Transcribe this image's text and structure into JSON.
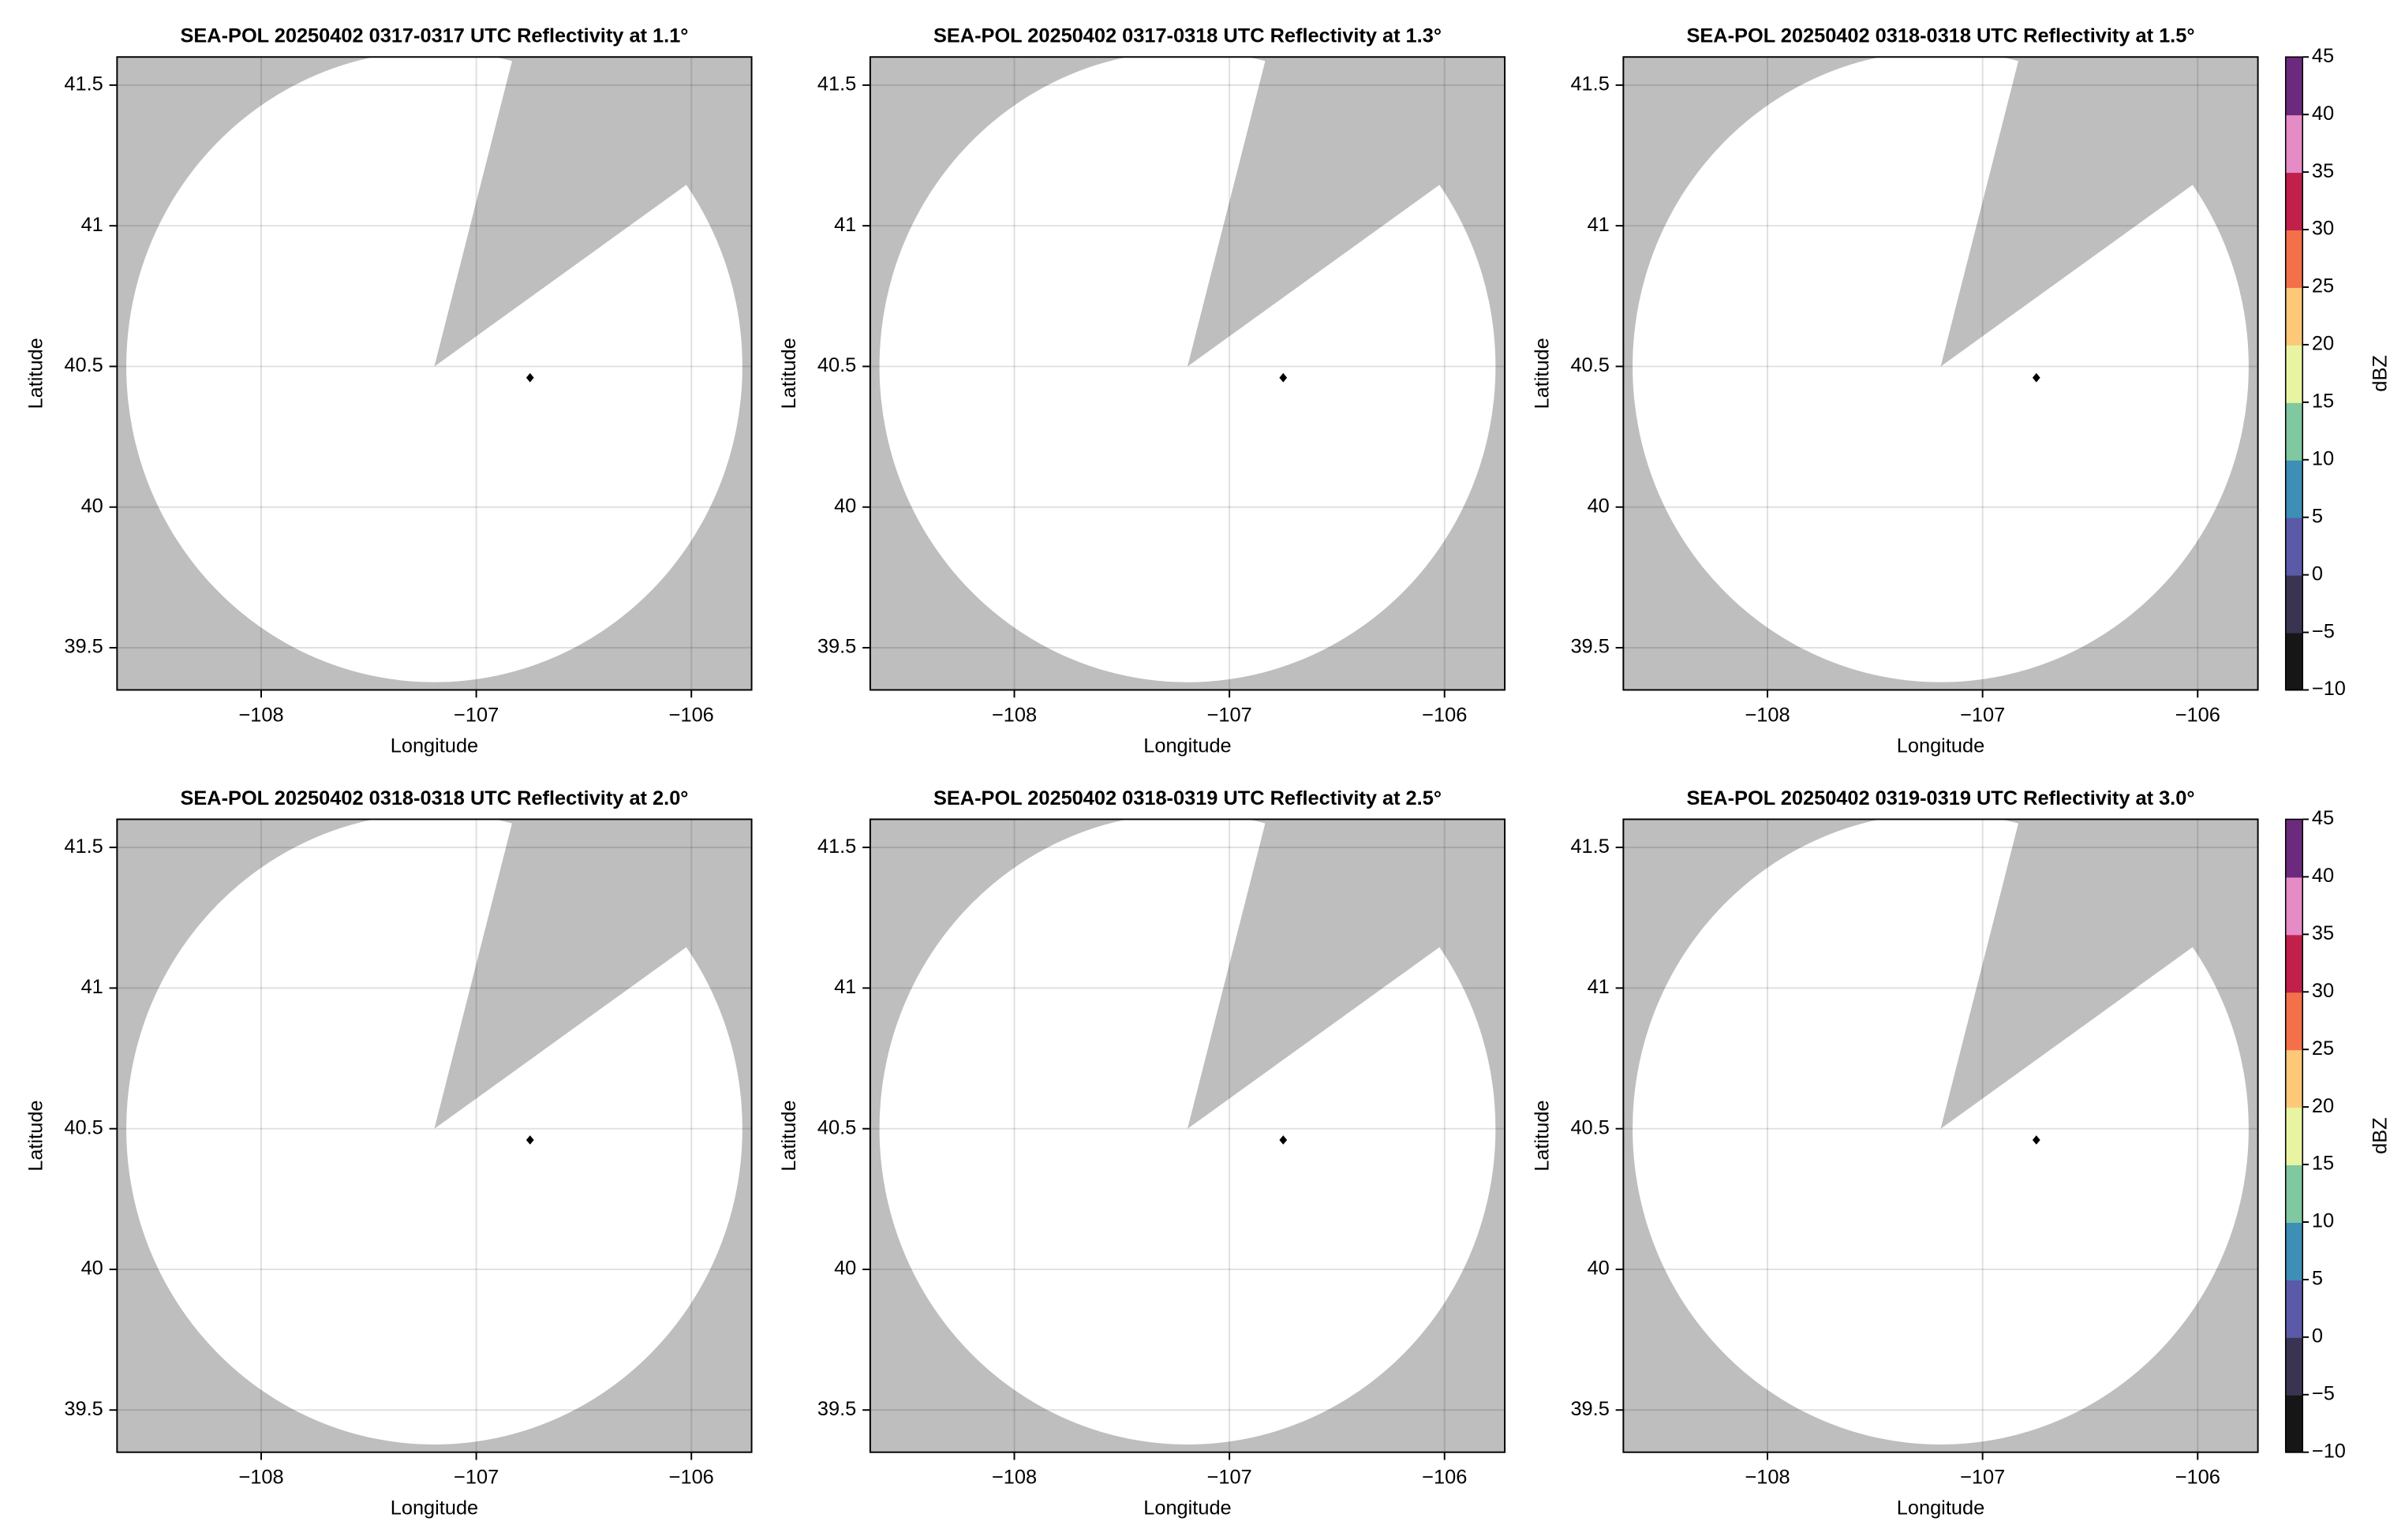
{
  "chart_data": [
    {
      "type": "ppi",
      "title": "SEA-POL 20250402 0317-0317 UTC Reflectivity at 1.1°",
      "xlabel": "Longitude",
      "ylabel": "Latitude",
      "xlim": [
        -108.67,
        -105.72
      ],
      "ylim": [
        39.35,
        41.6
      ],
      "xticks": [
        {
          "value": -108,
          "label": "−108"
        },
        {
          "value": -107,
          "label": "−107"
        },
        {
          "value": -106,
          "label": "−106"
        }
      ],
      "yticks": [
        39.5,
        40.0,
        40.5,
        41.0,
        41.5
      ],
      "grid": true,
      "points": {
        "x": [
          -106.75
        ],
        "y": [
          40.46
        ],
        "color": "#000000"
      }
    },
    {
      "type": "ppi",
      "title": "SEA-POL 20250402 0317-0318 UTC Reflectivity at 1.3°",
      "xlabel": "Longitude",
      "ylabel": "Latitude",
      "xlim": [
        -108.67,
        -105.72
      ],
      "ylim": [
        39.35,
        41.6
      ],
      "xticks": [
        {
          "value": -108,
          "label": "−108"
        },
        {
          "value": -107,
          "label": "−107"
        },
        {
          "value": -106,
          "label": "−106"
        }
      ],
      "yticks": [
        39.5,
        40.0,
        40.5,
        41.0,
        41.5
      ],
      "grid": true,
      "points": {
        "x": [
          -106.75
        ],
        "y": [
          40.46
        ],
        "color": "#000000"
      }
    },
    {
      "type": "ppi",
      "title": "SEA-POL 20250402 0318-0318 UTC Reflectivity at 1.5°",
      "xlabel": "Longitude",
      "ylabel": "Latitude",
      "xlim": [
        -108.67,
        -105.72
      ],
      "ylim": [
        39.35,
        41.6
      ],
      "xticks": [
        {
          "value": -108,
          "label": "−108"
        },
        {
          "value": -107,
          "label": "−107"
        },
        {
          "value": -106,
          "label": "−106"
        }
      ],
      "yticks": [
        39.5,
        40.0,
        40.5,
        41.0,
        41.5
      ],
      "grid": true,
      "points": {
        "x": [
          -106.75
        ],
        "y": [
          40.46
        ],
        "color": "#000000"
      },
      "colorbar": {
        "label": "dBZ",
        "lim": [
          -10,
          45
        ],
        "ticks": [
          {
            "value": -10,
            "label": "−10"
          },
          {
            "value": -5,
            "label": "−5"
          },
          0,
          5,
          10,
          15,
          20,
          25,
          30,
          35,
          40,
          45
        ],
        "colors": [
          "#161616",
          "#3a3452",
          "#5a5aa8",
          "#3d8fb5",
          "#80c8a0",
          "#e8f4a2",
          "#fdc877",
          "#f3704a",
          "#c0204a",
          "#e58bc6",
          "#6b2a7d"
        ]
      }
    },
    {
      "type": "ppi",
      "title": "SEA-POL 20250402 0318-0318 UTC Reflectivity at 2.0°",
      "xlabel": "Longitude",
      "ylabel": "Latitude",
      "xlim": [
        -108.67,
        -105.72
      ],
      "ylim": [
        39.35,
        41.6
      ],
      "xticks": [
        {
          "value": -108,
          "label": "−108"
        },
        {
          "value": -107,
          "label": "−107"
        },
        {
          "value": -106,
          "label": "−106"
        }
      ],
      "yticks": [
        39.5,
        40.0,
        40.5,
        41.0,
        41.5
      ],
      "grid": true,
      "points": {
        "x": [
          -106.75
        ],
        "y": [
          40.46
        ],
        "color": "#000000"
      }
    },
    {
      "type": "ppi",
      "title": "SEA-POL 20250402 0318-0319 UTC Reflectivity at 2.5°",
      "xlabel": "Longitude",
      "ylabel": "Latitude",
      "xlim": [
        -108.67,
        -105.72
      ],
      "ylim": [
        39.35,
        41.6
      ],
      "xticks": [
        {
          "value": -108,
          "label": "−108"
        },
        {
          "value": -107,
          "label": "−107"
        },
        {
          "value": -106,
          "label": "−106"
        }
      ],
      "yticks": [
        39.5,
        40.0,
        40.5,
        41.0,
        41.5
      ],
      "grid": true,
      "points": {
        "x": [
          -106.75
        ],
        "y": [
          40.46
        ],
        "color": "#000000"
      }
    },
    {
      "type": "ppi",
      "title": "SEA-POL 20250402 0319-0319 UTC Reflectivity at 3.0°",
      "xlabel": "Longitude",
      "ylabel": "Latitude",
      "xlim": [
        -108.67,
        -105.72
      ],
      "ylim": [
        39.35,
        41.6
      ],
      "xticks": [
        {
          "value": -108,
          "label": "−108"
        },
        {
          "value": -107,
          "label": "−107"
        },
        {
          "value": -106,
          "label": "−106"
        }
      ],
      "yticks": [
        39.5,
        40.0,
        40.5,
        41.0,
        41.5
      ],
      "grid": true,
      "points": {
        "x": [
          -106.75
        ],
        "y": [
          40.46
        ],
        "color": "#000000"
      },
      "colorbar": {
        "label": "dBZ",
        "lim": [
          -10,
          45
        ],
        "ticks": [
          {
            "value": -10,
            "label": "−10"
          },
          {
            "value": -5,
            "label": "−5"
          },
          0,
          5,
          10,
          15,
          20,
          25,
          30,
          35,
          40,
          45
        ],
        "colors": [
          "#161616",
          "#3a3452",
          "#5a5aa8",
          "#3d8fb5",
          "#80c8a0",
          "#e8f4a2",
          "#fdc877",
          "#f3704a",
          "#c0204a",
          "#e58bc6",
          "#6b2a7d"
        ]
      }
    }
  ]
}
